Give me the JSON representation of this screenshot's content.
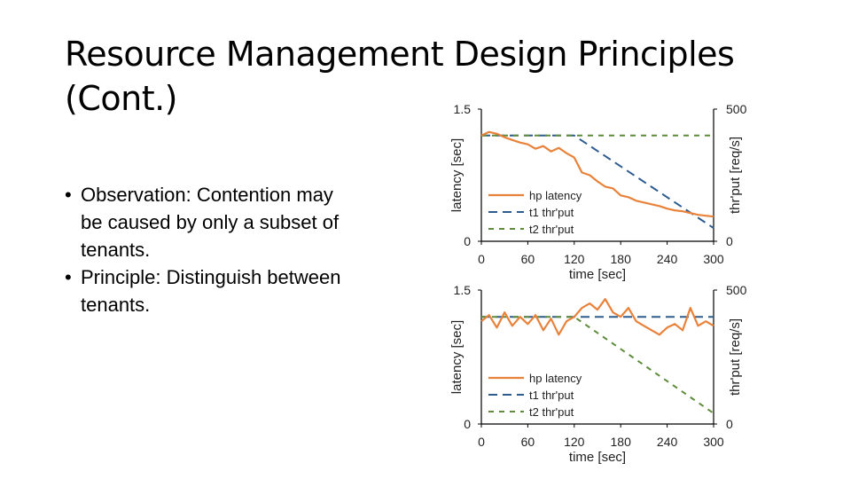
{
  "slide": {
    "title_line1": "Resource Management Design Principles",
    "title_line2": "(Cont.)",
    "bullets": [
      "Observation: Contention may be caused by only a subset of tenants.",
      "Principle: Distinguish between tenants."
    ]
  },
  "colors": {
    "hp_latency": "#E8823A",
    "t1": "#2F5C8F",
    "t2": "#5E8C3A"
  },
  "chart_data": [
    {
      "type": "line",
      "xlabel": "time [sec]",
      "ylabel_left": "latency [sec]",
      "ylabel_right": "thr'put [req/s]",
      "xlim": [
        0,
        300
      ],
      "ylim_left": [
        0,
        1.5
      ],
      "ylim_right": [
        0,
        500
      ],
      "xticks": [
        "0",
        "60",
        "120",
        "180",
        "240",
        "300"
      ],
      "yticks_left": [
        "0",
        "1.5"
      ],
      "yticks_right": [
        "0",
        "500"
      ],
      "legend": [
        "hp latency",
        "t1 thr'put",
        "t2 thr'put"
      ],
      "legend_position": "bottom-left",
      "series": [
        {
          "name": "hp latency",
          "axis": "left",
          "x": [
            0,
            10,
            20,
            30,
            40,
            50,
            60,
            70,
            80,
            90,
            100,
            110,
            120,
            130,
            140,
            150,
            160,
            170,
            180,
            190,
            200,
            210,
            220,
            230,
            240,
            250,
            260,
            270,
            280,
            290,
            300
          ],
          "y": [
            1.2,
            1.24,
            1.22,
            1.18,
            1.15,
            1.12,
            1.1,
            1.05,
            1.08,
            1.02,
            1.06,
            1.0,
            0.95,
            0.78,
            0.75,
            0.68,
            0.62,
            0.6,
            0.52,
            0.5,
            0.46,
            0.44,
            0.42,
            0.4,
            0.37,
            0.35,
            0.34,
            0.32,
            0.3,
            0.29,
            0.28
          ]
        },
        {
          "name": "t1 thr'put",
          "axis": "right",
          "x": [
            0,
            120,
            300
          ],
          "y": [
            400,
            400,
            50
          ]
        },
        {
          "name": "t2 thr'put",
          "axis": "right",
          "x": [
            0,
            300
          ],
          "y": [
            400,
            400
          ]
        }
      ]
    },
    {
      "type": "line",
      "xlabel": "time [sec]",
      "ylabel_left": "latency [sec]",
      "ylabel_right": "thr'put [req/s]",
      "xlim": [
        0,
        300
      ],
      "ylim_left": [
        0,
        1.5
      ],
      "ylim_right": [
        0,
        500
      ],
      "xticks": [
        "0",
        "60",
        "120",
        "180",
        "240",
        "300"
      ],
      "yticks_left": [
        "0",
        "1.5"
      ],
      "yticks_right": [
        "0",
        "500"
      ],
      "legend": [
        "hp latency",
        "t1 thr'put",
        "t2 thr'put"
      ],
      "legend_position": "bottom-left",
      "series": [
        {
          "name": "hp latency",
          "axis": "left",
          "x": [
            0,
            10,
            20,
            30,
            40,
            50,
            60,
            70,
            80,
            90,
            100,
            110,
            120,
            130,
            140,
            150,
            160,
            170,
            180,
            190,
            200,
            210,
            220,
            230,
            240,
            250,
            260,
            270,
            280,
            290,
            300
          ],
          "y": [
            1.15,
            1.22,
            1.08,
            1.25,
            1.1,
            1.2,
            1.12,
            1.22,
            1.05,
            1.18,
            1.0,
            1.15,
            1.2,
            1.3,
            1.35,
            1.28,
            1.4,
            1.25,
            1.2,
            1.3,
            1.15,
            1.1,
            1.05,
            1.0,
            1.08,
            1.12,
            1.05,
            1.3,
            1.1,
            1.15,
            1.1
          ]
        },
        {
          "name": "t1 thr'put",
          "axis": "right",
          "x": [
            0,
            300
          ],
          "y": [
            400,
            400
          ]
        },
        {
          "name": "t2 thr'put",
          "axis": "right",
          "x": [
            0,
            120,
            300
          ],
          "y": [
            400,
            400,
            40
          ]
        }
      ]
    }
  ]
}
